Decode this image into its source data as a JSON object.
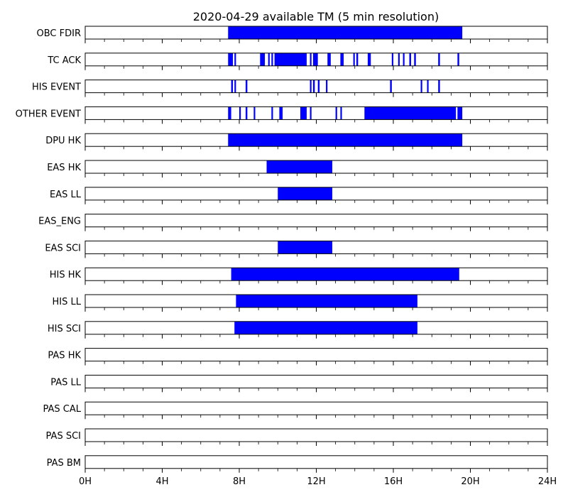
{
  "chart_data": {
    "type": "bar",
    "title": "2020-04-29 available TM (5 min resolution)",
    "xlabel": "",
    "ylabel": "",
    "xlim": [
      0,
      24
    ],
    "x_unit": "hour",
    "major_ticks": [
      0,
      4,
      8,
      12,
      16,
      20,
      24
    ],
    "major_tick_labels": [
      "0H",
      "4H",
      "8H",
      "12H",
      "16H",
      "20H",
      "24H"
    ],
    "minor_tick_step": 1,
    "grid": false,
    "legend": "none",
    "bar_color": "#0000ff",
    "series": [
      {
        "name": "OBC FDIR",
        "intervals": [
          [
            7.42,
            19.58
          ]
        ]
      },
      {
        "name": "TC ACK",
        "intervals": [
          [
            7.42,
            7.67
          ],
          [
            7.75,
            7.83
          ],
          [
            9.08,
            9.33
          ],
          [
            9.5,
            9.58
          ],
          [
            9.67,
            9.75
          ],
          [
            9.83,
            11.5
          ],
          [
            11.67,
            11.75
          ],
          [
            11.83,
            12.08
          ],
          [
            12.58,
            12.75
          ],
          [
            13.25,
            13.42
          ],
          [
            13.92,
            14.0
          ],
          [
            14.08,
            14.17
          ],
          [
            14.67,
            14.83
          ],
          [
            15.92,
            16.0
          ],
          [
            16.25,
            16.33
          ],
          [
            16.5,
            16.58
          ],
          [
            16.83,
            16.92
          ],
          [
            17.08,
            17.17
          ],
          [
            18.33,
            18.42
          ],
          [
            19.33,
            19.42
          ]
        ]
      },
      {
        "name": "HIS EVENT",
        "intervals": [
          [
            7.58,
            7.67
          ],
          [
            7.75,
            7.83
          ],
          [
            8.33,
            8.42
          ],
          [
            11.67,
            11.75
          ],
          [
            11.83,
            11.92
          ],
          [
            12.08,
            12.17
          ],
          [
            12.5,
            12.58
          ],
          [
            15.83,
            15.92
          ],
          [
            17.42,
            17.5
          ],
          [
            17.75,
            17.83
          ],
          [
            18.33,
            18.42
          ]
        ]
      },
      {
        "name": "OTHER EVENT",
        "intervals": [
          [
            7.42,
            7.58
          ],
          [
            8.0,
            8.08
          ],
          [
            8.33,
            8.42
          ],
          [
            8.75,
            8.83
          ],
          [
            9.67,
            9.75
          ],
          [
            10.08,
            10.25
          ],
          [
            11.17,
            11.5
          ],
          [
            11.67,
            11.75
          ],
          [
            13.0,
            13.08
          ],
          [
            13.25,
            13.33
          ],
          [
            14.5,
            19.25
          ],
          [
            19.33,
            19.58
          ]
        ]
      },
      {
        "name": "DPU HK",
        "intervals": [
          [
            7.42,
            19.58
          ]
        ]
      },
      {
        "name": "EAS HK",
        "intervals": [
          [
            9.42,
            12.83
          ]
        ]
      },
      {
        "name": "EAS LL",
        "intervals": [
          [
            10.0,
            12.83
          ]
        ]
      },
      {
        "name": "EAS_ENG",
        "intervals": []
      },
      {
        "name": "EAS SCI",
        "intervals": [
          [
            10.0,
            12.83
          ]
        ]
      },
      {
        "name": "HIS HK",
        "intervals": [
          [
            7.58,
            19.42
          ]
        ]
      },
      {
        "name": "HIS LL",
        "intervals": [
          [
            7.83,
            17.25
          ]
        ]
      },
      {
        "name": "HIS SCI",
        "intervals": [
          [
            7.75,
            17.25
          ]
        ]
      },
      {
        "name": "PAS HK",
        "intervals": []
      },
      {
        "name": "PAS LL",
        "intervals": []
      },
      {
        "name": "PAS CAL",
        "intervals": []
      },
      {
        "name": "PAS SCI",
        "intervals": []
      },
      {
        "name": "PAS BM",
        "intervals": []
      }
    ]
  }
}
